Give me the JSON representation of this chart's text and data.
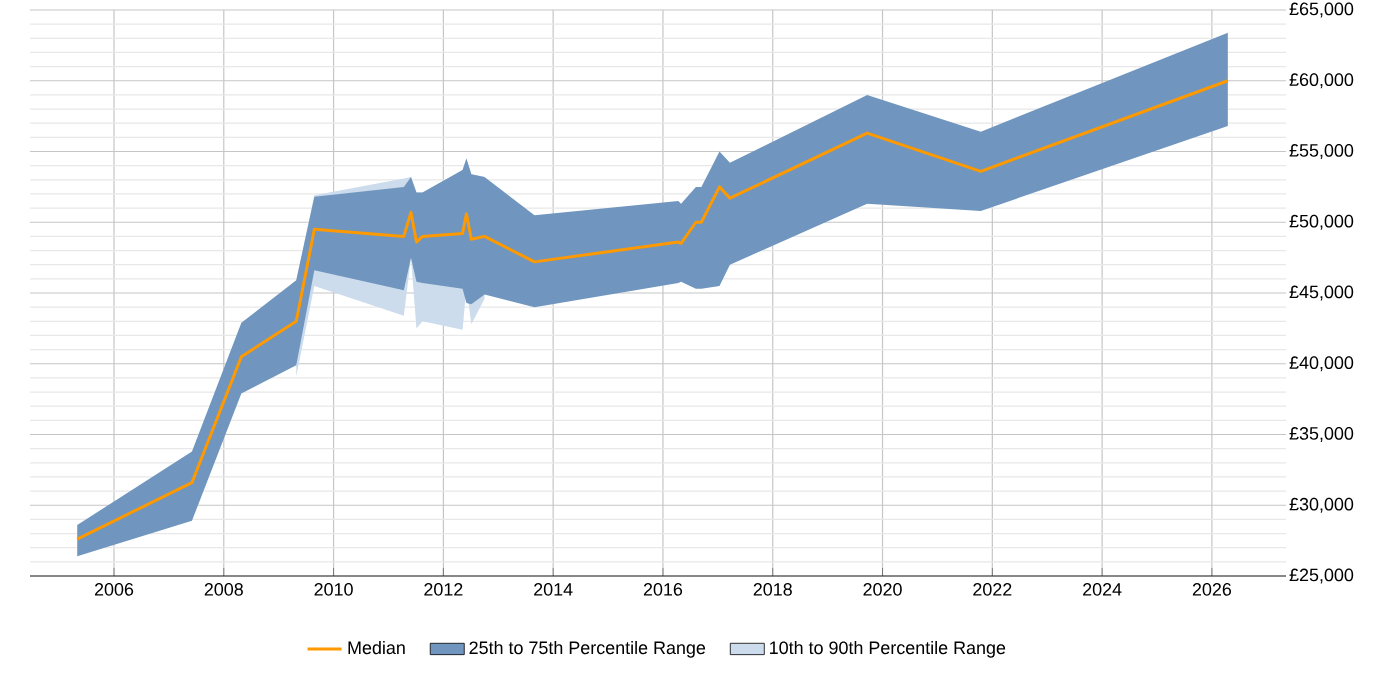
{
  "chart_data": {
    "type": "line",
    "x": [
      2005.33,
      2007.42,
      2008.32,
      2009.32,
      2009.65,
      2011.28,
      2011.41,
      2011.51,
      2011.62,
      2012.35,
      2012.42,
      2012.51,
      2012.75,
      2013.66,
      2016.28,
      2016.33,
      2016.6,
      2016.7,
      2017.03,
      2017.22,
      2019.72,
      2021.79,
      2026.29
    ],
    "series": [
      {
        "name": "Median",
        "color": "#ff9900",
        "values": [
          27600,
          31600,
          40500,
          43000,
          49500,
          49000,
          50700,
          48600,
          49000,
          49200,
          50600,
          48800,
          49000,
          47200,
          48600,
          48500,
          50000,
          50000,
          52500,
          51700,
          56300,
          53600,
          60000
        ]
      },
      {
        "name": "25th to 75th Percentile Range",
        "color": "#7096bf",
        "values": [
          null,
          null,
          null,
          null,
          null,
          null,
          null,
          null,
          null,
          null,
          null,
          null,
          null,
          null,
          null,
          null,
          null,
          null,
          null,
          null,
          null,
          null,
          null
        ],
        "lower": [
          26400,
          28900,
          37900,
          39900,
          46600,
          45200,
          47500,
          45800,
          45700,
          45300,
          44300,
          44200,
          44900,
          44000,
          45700,
          45800,
          45300,
          45300,
          45500,
          47000,
          51300,
          50800,
          56800
        ],
        "upper": [
          28600,
          33800,
          42900,
          45900,
          51800,
          52500,
          53200,
          52100,
          52100,
          53700,
          54500,
          53400,
          53200,
          50500,
          51500,
          51300,
          52500,
          52500,
          55000,
          54200,
          59000,
          56400,
          63400
        ]
      },
      {
        "name": "10th to 90th Percentile Range",
        "color": "#ccdcec",
        "values": [
          null,
          null,
          null,
          null,
          null,
          null,
          null,
          null,
          null,
          null,
          null,
          null,
          null,
          null,
          null,
          null,
          null,
          null,
          null,
          null,
          null,
          null,
          null
        ],
        "lower": [
          null,
          null,
          null,
          39100,
          45500,
          43400,
          47500,
          42500,
          43000,
          42400,
          45400,
          42800,
          44600,
          null,
          null,
          null,
          null,
          null,
          null,
          null,
          null,
          null,
          null
        ],
        "upper": [
          null,
          null,
          null,
          45900,
          51900,
          53100,
          53200,
          52100,
          52100,
          53700,
          54500,
          53400,
          53200,
          null,
          null,
          null,
          null,
          null,
          null,
          null,
          null,
          null,
          null
        ]
      }
    ],
    "xlim": [
      2004.47,
      2027.35
    ],
    "ylim": [
      25000,
      65000
    ],
    "xticks": [
      2006,
      2008,
      2010,
      2012,
      2014,
      2016,
      2018,
      2020,
      2022,
      2024,
      2026
    ],
    "yticks": [
      {
        "value": 25000,
        "label": "£25,000"
      },
      {
        "value": 30000,
        "label": "£30,000"
      },
      {
        "value": 35000,
        "label": "£35,000"
      },
      {
        "value": 40000,
        "label": "£40,000"
      },
      {
        "value": 45000,
        "label": "£45,000"
      },
      {
        "value": 50000,
        "label": "£50,000"
      },
      {
        "value": 55000,
        "label": "£55,000"
      },
      {
        "value": 60000,
        "label": "£60,000"
      },
      {
        "value": 65000,
        "label": "£65,000"
      }
    ],
    "grid": true,
    "legend": "bottom"
  }
}
